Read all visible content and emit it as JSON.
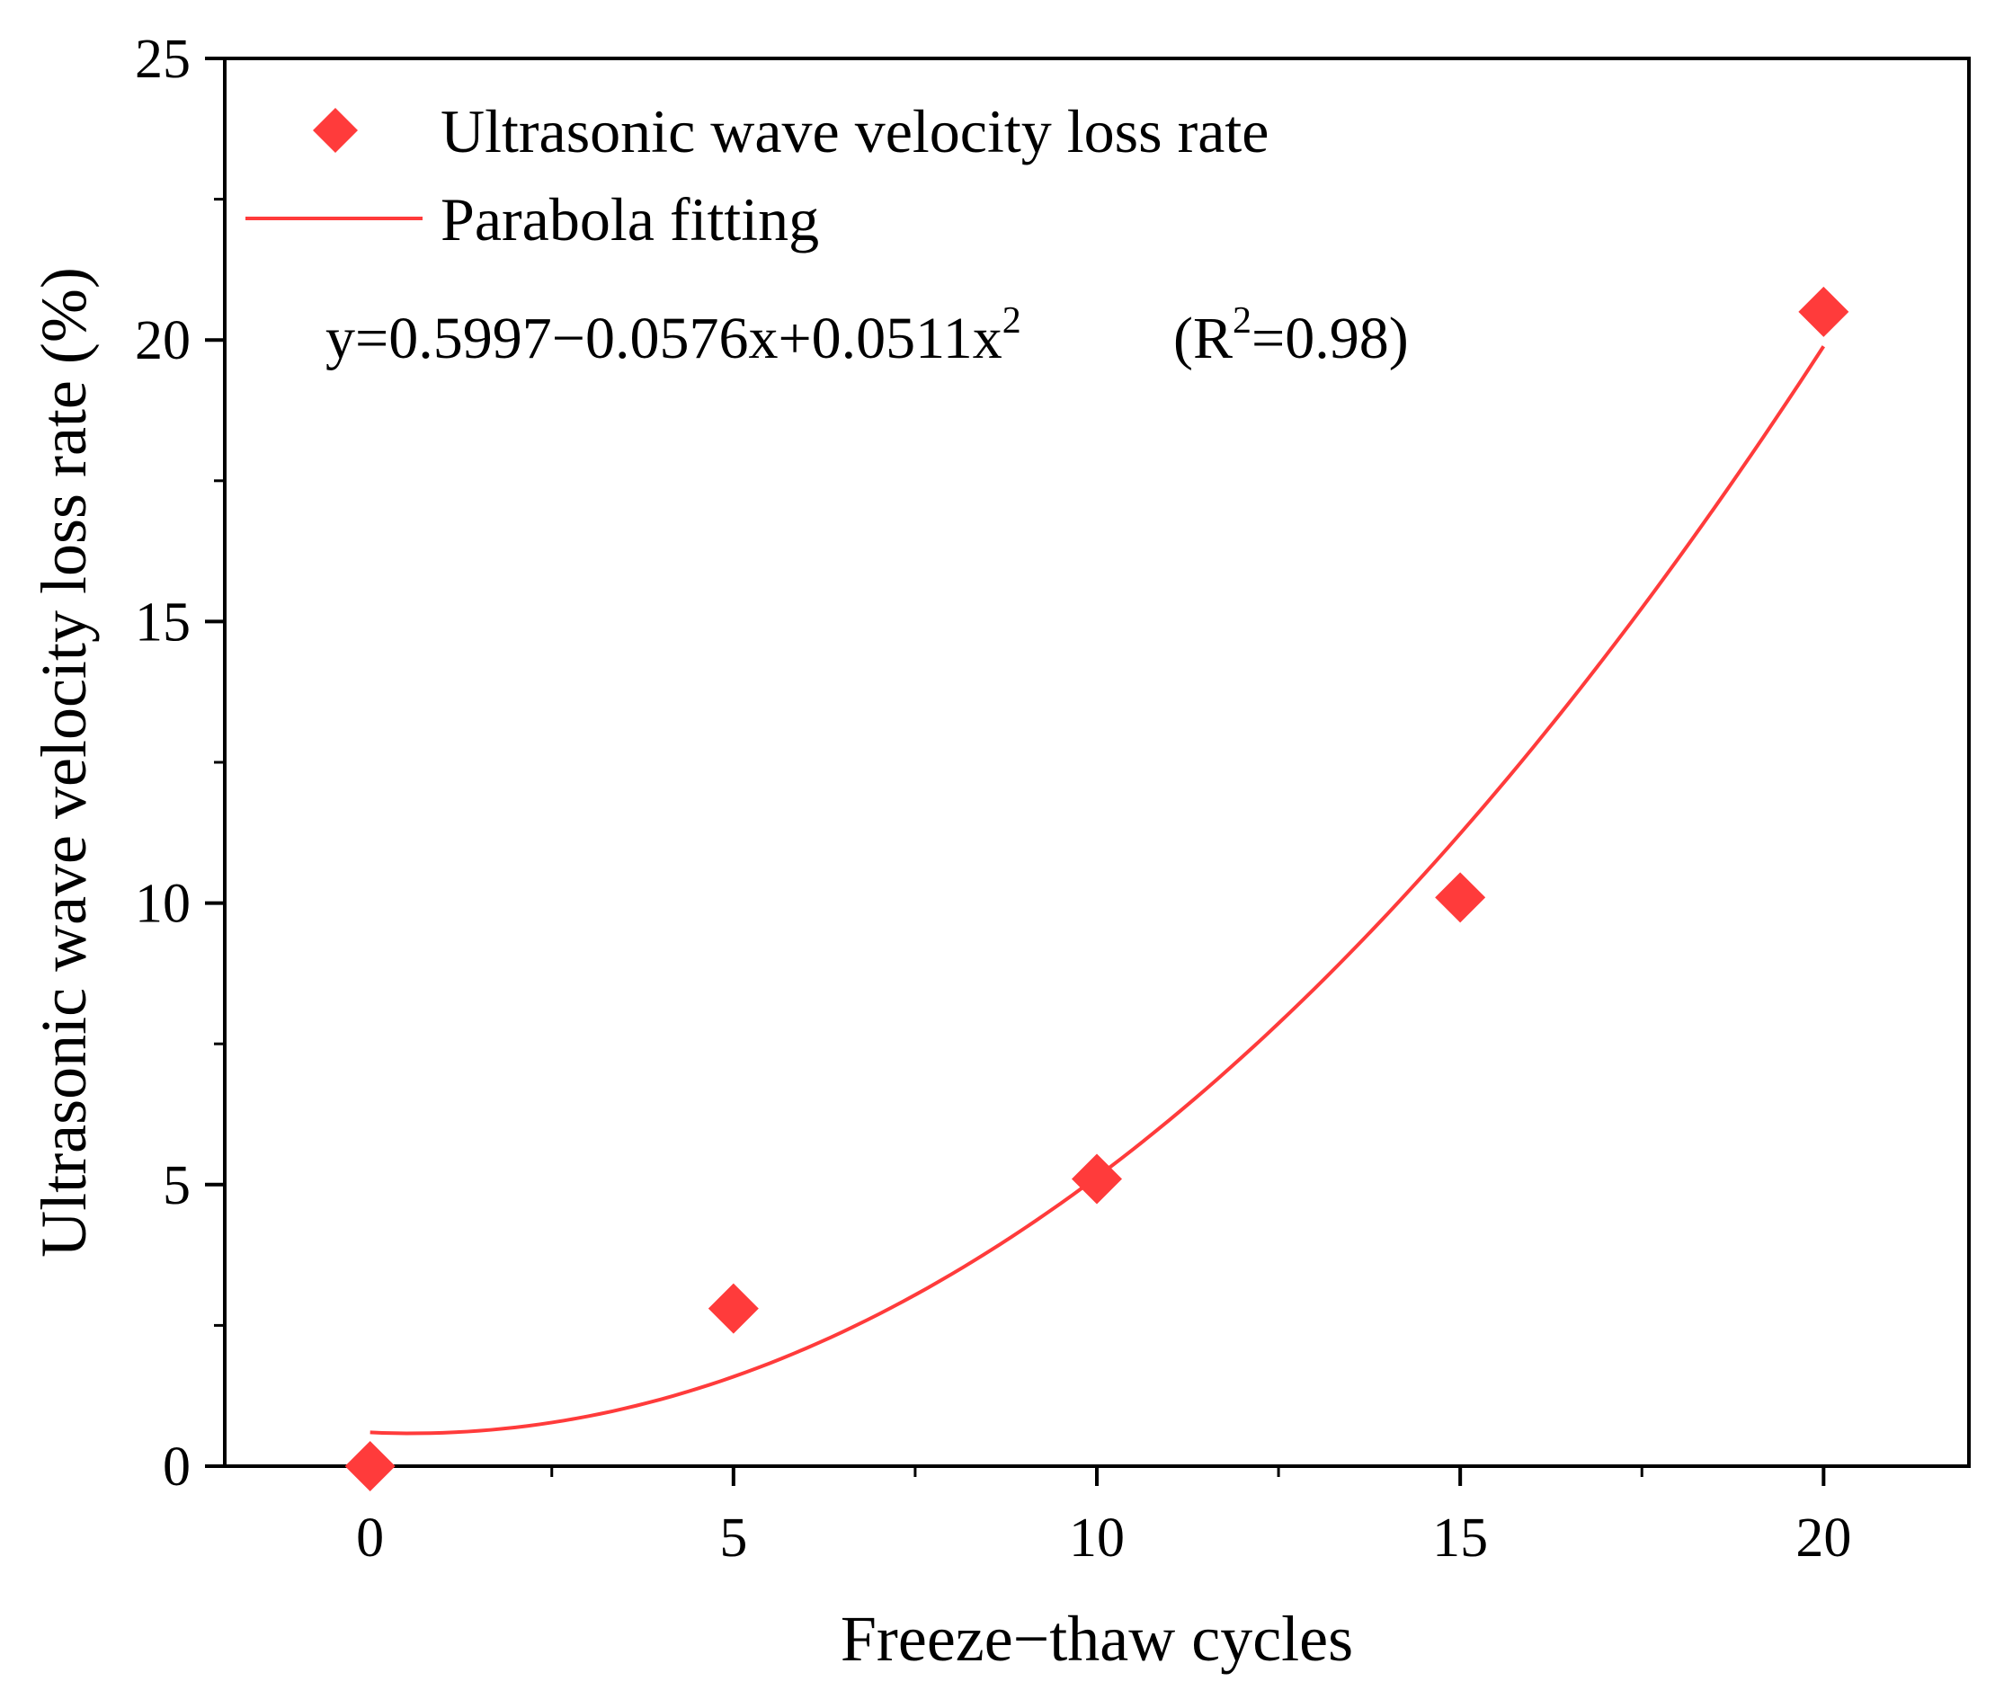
{
  "chart_data": {
    "type": "scatter",
    "title": "",
    "xlabel": "Freeze−thaw cycles",
    "ylabel": "Ultrasonic wave velocity loss rate (%)",
    "xlim": [
      -2,
      22
    ],
    "ylim": [
      0,
      25
    ],
    "x_ticks": [
      0,
      5,
      10,
      15,
      20
    ],
    "x_tick_labels": [
      "0",
      "5",
      "10",
      "15",
      "20"
    ],
    "y_ticks": [
      0,
      5,
      10,
      15,
      20,
      25
    ],
    "y_tick_labels": [
      "0",
      "5",
      "10",
      "15",
      "20",
      "25"
    ],
    "x_minor_ticks": [
      2.5,
      7.5,
      12.5,
      17.5
    ],
    "y_minor_ticks": [
      2.5,
      7.5,
      12.5,
      17.5,
      22.5
    ],
    "grid": false,
    "legend_position": "top-left",
    "series": [
      {
        "name": "Ultrasonic wave velocity loss rate",
        "kind": "scatter",
        "marker": "diamond",
        "color": "#ff3b3b",
        "x": [
          0,
          5,
          10,
          15,
          20
        ],
        "y": [
          0.0,
          2.8,
          5.1,
          10.1,
          20.5
        ]
      },
      {
        "name": "Parabola fitting",
        "kind": "line",
        "color": "#ff3b3b",
        "coefficients": [
          0.5997,
          -0.0576,
          0.0511
        ],
        "x_range": [
          0,
          20
        ]
      }
    ],
    "annotation": {
      "equation_main": "y=0.5997−0.0576x+0.0511x",
      "equation_sup": "2",
      "r2_open": "(R",
      "r2_sup": "2",
      "r2_close": "=0.98)"
    }
  }
}
